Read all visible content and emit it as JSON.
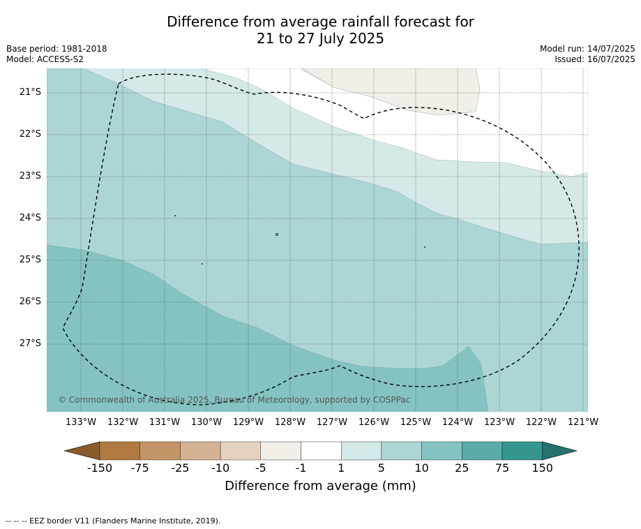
{
  "title": {
    "line1": "Difference from average rainfall forecast for",
    "line2": "21 to 27 July 2025"
  },
  "meta": {
    "base_period": "Base period: 1981-2018",
    "model": "Model: ACCESS-S2",
    "model_run": "Model run: 14/07/2025",
    "issued": "Issued: 16/07/2025"
  },
  "map": {
    "lat_labels": [
      "21°S",
      "22°S",
      "23°S",
      "24°S",
      "25°S",
      "26°S",
      "27°S"
    ],
    "lon_labels": [
      "133°W",
      "132°W",
      "131°W",
      "130°W",
      "129°W",
      "128°W",
      "127°W",
      "126°W",
      "125°W",
      "124°W",
      "123°W",
      "122°W",
      "121°W"
    ],
    "copyright": "© Commonwealth of Australia 2025, Bureau of Meteorology, supported by COSPPac",
    "colors": {
      "c_1_5": "#d5e9e8",
      "c_5_10": "#acd6d5",
      "c_10_25": "#84c3c1",
      "c_neg1_neg5": "#f2efe9",
      "eez_line": "#000000"
    }
  },
  "colorbar": {
    "title": "Difference from average (mm)",
    "tick_labels": [
      "-150",
      "-75",
      "-25",
      "-10",
      "-5",
      "-1",
      "1",
      "5",
      "10",
      "25",
      "75",
      "150"
    ],
    "colors": [
      "#b07a40",
      "#c29668",
      "#d5b293",
      "#e5d1bf",
      "#f2efe9",
      "#ffffff",
      "#d5e9e8",
      "#acd6d5",
      "#84c3c1",
      "#5aacaa",
      "#35958f"
    ],
    "low_extend_color": "#8b5a2b",
    "high_extend_color": "#26726d"
  },
  "footer": {
    "eez_legend": "--  --  -- EEZ border V11 (Flanders Marine Institute, 2019)."
  }
}
